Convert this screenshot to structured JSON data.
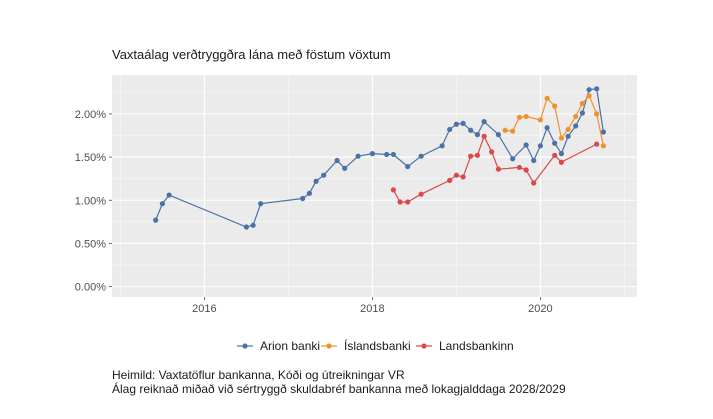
{
  "chart_data": {
    "type": "line",
    "title": "Vaxtaálag verðtryggðra lána með föstum vöxtum",
    "xlabel": "",
    "ylabel": "",
    "x_ticks": [
      "2016",
      "2018",
      "2020"
    ],
    "x_tick_values": [
      2016,
      2018,
      2020
    ],
    "y_ticks": [
      "0.00%",
      "0.50%",
      "1.00%",
      "1.50%",
      "2.00%"
    ],
    "y_tick_values": [
      0,
      0.5,
      1.0,
      1.5,
      2.0
    ],
    "xlim": [
      2014.9,
      2021.15
    ],
    "ylim": [
      -0.12,
      2.45
    ],
    "grid": true,
    "legend_position": "bottom",
    "series": [
      {
        "name": "Arion banki",
        "color": "#4a72a6",
        "x": [
          2015.42,
          2015.5,
          2015.58,
          2016.5,
          2016.58,
          2016.67,
          2017.17,
          2017.25,
          2017.33,
          2017.42,
          2017.58,
          2017.67,
          2017.83,
          2018.0,
          2018.17,
          2018.25,
          2018.42,
          2018.58,
          2018.83,
          2018.92,
          2019.0,
          2019.08,
          2019.17,
          2019.25,
          2019.33,
          2019.5,
          2019.67,
          2019.83,
          2019.92,
          2020.0,
          2020.08,
          2020.17,
          2020.25,
          2020.33,
          2020.42,
          2020.5,
          2020.58,
          2020.67,
          2020.75
        ],
        "y": [
          0.77,
          0.96,
          1.06,
          0.69,
          0.71,
          0.96,
          1.02,
          1.08,
          1.22,
          1.29,
          1.46,
          1.37,
          1.51,
          1.54,
          1.53,
          1.53,
          1.39,
          1.51,
          1.63,
          1.82,
          1.88,
          1.89,
          1.81,
          1.76,
          1.91,
          1.76,
          1.48,
          1.64,
          1.46,
          1.63,
          1.84,
          1.66,
          1.54,
          1.74,
          1.86,
          2.01,
          2.28,
          2.29,
          1.79
        ]
      },
      {
        "name": "Íslandsbanki",
        "color": "#f0922a",
        "x": [
          2019.58,
          2019.67,
          2019.75,
          2019.83,
          2020.0,
          2020.08,
          2020.17,
          2020.25,
          2020.33,
          2020.42,
          2020.5,
          2020.58,
          2020.67,
          2020.75
        ],
        "y": [
          1.81,
          1.8,
          1.96,
          1.97,
          1.93,
          2.18,
          2.09,
          1.72,
          1.82,
          1.97,
          2.12,
          2.21,
          2.0,
          1.63
        ]
      },
      {
        "name": "Landsbankinn",
        "color": "#d94a4a",
        "x": [
          2018.25,
          2018.33,
          2018.42,
          2018.58,
          2018.92,
          2019.0,
          2019.08,
          2019.17,
          2019.25,
          2019.33,
          2019.42,
          2019.5,
          2019.75,
          2019.83,
          2019.92,
          2020.17,
          2020.25,
          2020.67
        ],
        "y": [
          1.12,
          0.98,
          0.98,
          1.07,
          1.23,
          1.29,
          1.27,
          1.51,
          1.52,
          1.74,
          1.56,
          1.36,
          1.38,
          1.35,
          1.2,
          1.52,
          1.44,
          1.65
        ]
      }
    ],
    "source_note_1": "Heimild: Vaxtatöflur bankanna, Kóði og útreikningar VR",
    "source_note_2": "Álag reiknað miðað við sértryggð skuldabréf bankanna með lokagjalddaga 2028/2029"
  }
}
